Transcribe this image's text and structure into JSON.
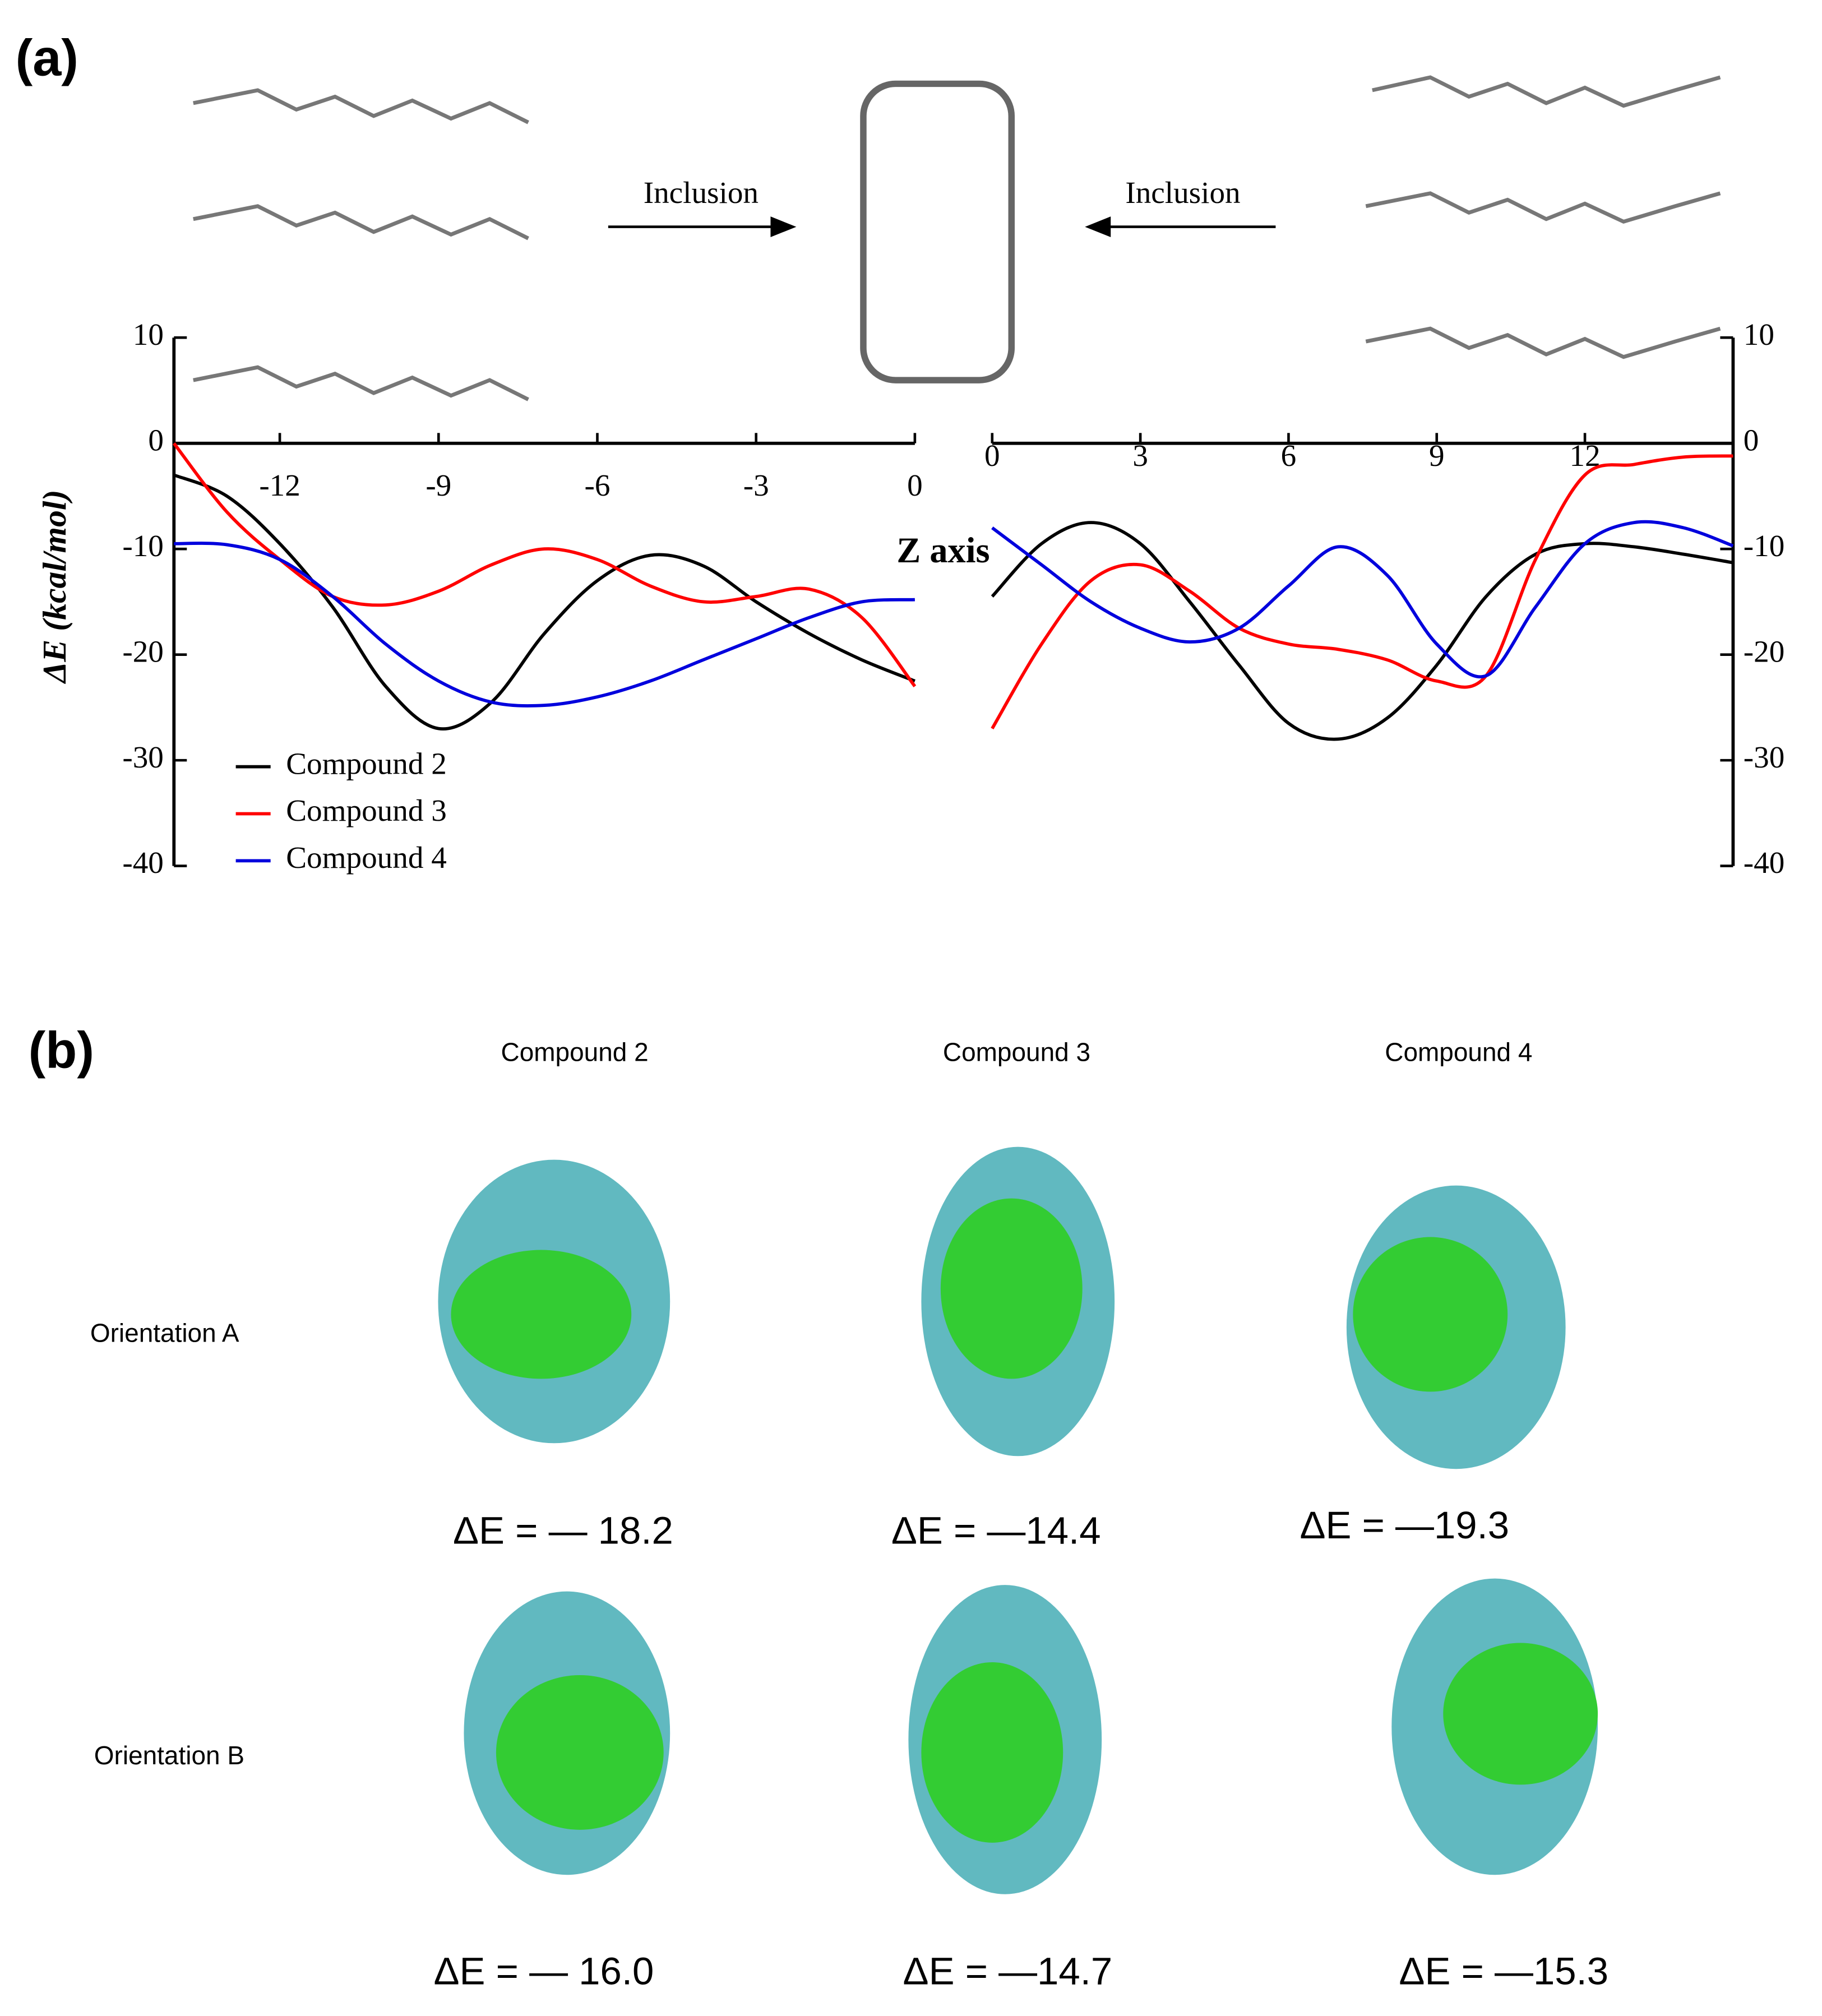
{
  "panel_labels": [
    "(a)",
    "(b)"
  ],
  "inclusion_labels": [
    "Inclusion",
    "Inclusion"
  ],
  "chart_data": [
    {
      "type": "line",
      "y_label": "ΔE (kcal/mol)",
      "x_label": "Z axis",
      "x": [
        -14,
        -13,
        -12,
        -11,
        -10,
        -9,
        -8,
        -7,
        -6,
        -5,
        -4,
        -3,
        -2,
        -1,
        0
      ],
      "xlim": [
        -14,
        0
      ],
      "xticks": [
        -12,
        -9,
        -6,
        -3,
        0
      ],
      "ylim": [
        -40,
        10
      ],
      "yticks": [
        -40,
        -30,
        -20,
        -10,
        0,
        10
      ],
      "y_side": "left",
      "legend": "lower left",
      "series": [
        {
          "name": "Compound 2",
          "color": "#000000",
          "values": [
            -3,
            -5,
            -9.5,
            -15.5,
            -23,
            -27,
            -24.5,
            -18,
            -13,
            -10.6,
            -11.6,
            -15,
            -18,
            -20.5,
            -22.5
          ]
        },
        {
          "name": "Compound 3",
          "color": "#ff0000",
          "values": [
            0,
            -6.5,
            -11,
            -14.5,
            -15.3,
            -14,
            -11.5,
            -10,
            -11,
            -13.5,
            -15,
            -14.5,
            -13.8,
            -16.5,
            -23
          ]
        },
        {
          "name": "Compound 4",
          "color": "#0000dd",
          "values": [
            -9.5,
            -9.6,
            -11,
            -14.5,
            -19,
            -22.5,
            -24.5,
            -24.8,
            -24,
            -22.5,
            -20.5,
            -18.5,
            -16.5,
            -15,
            -14.8
          ]
        }
      ]
    },
    {
      "type": "line",
      "x": [
        0,
        1,
        2,
        3,
        4,
        5,
        6,
        7,
        8,
        9,
        10,
        11,
        12,
        13,
        14,
        15
      ],
      "xlim": [
        0,
        15
      ],
      "xticks": [
        0,
        3,
        6,
        9,
        12
      ],
      "ylim": [
        -40,
        10
      ],
      "yticks": [
        -40,
        -30,
        -20,
        -10,
        0,
        10
      ],
      "y_side": "right",
      "series": [
        {
          "color": "#000000",
          "values": [
            -14.5,
            -9.5,
            -7.5,
            -9.5,
            -15,
            -21,
            -26.5,
            -28,
            -26,
            -21,
            -14.5,
            -10.5,
            -9.5,
            -9.8,
            -10.5,
            -11.3
          ]
        },
        {
          "color": "#ff0000",
          "values": [
            -27,
            -19,
            -13,
            -11.5,
            -14,
            -17.5,
            -19,
            -19.5,
            -20.5,
            -22.5,
            -22,
            -11,
            -3,
            -2,
            -1.3,
            -1.2
          ]
        },
        {
          "color": "#0000dd",
          "values": [
            -8,
            -11.5,
            -15,
            -17.5,
            -18.8,
            -17.5,
            -13.5,
            -9.8,
            -12.5,
            -19,
            -22,
            -15.5,
            -9.5,
            -7.5,
            -8,
            -9.7
          ]
        }
      ]
    }
  ],
  "panel_b": {
    "columns": [
      "Compound 2",
      "Compound 3",
      "Compound 4"
    ],
    "rows": [
      "Orientation A",
      "Orientation B"
    ],
    "energies": [
      [
        "ΔE = — 18.2",
        "ΔE = —14.4",
        "ΔE = —19.3"
      ],
      [
        "ΔE = — 16.0",
        "ΔE = —14.7",
        "ΔE = —15.3"
      ]
    ]
  }
}
